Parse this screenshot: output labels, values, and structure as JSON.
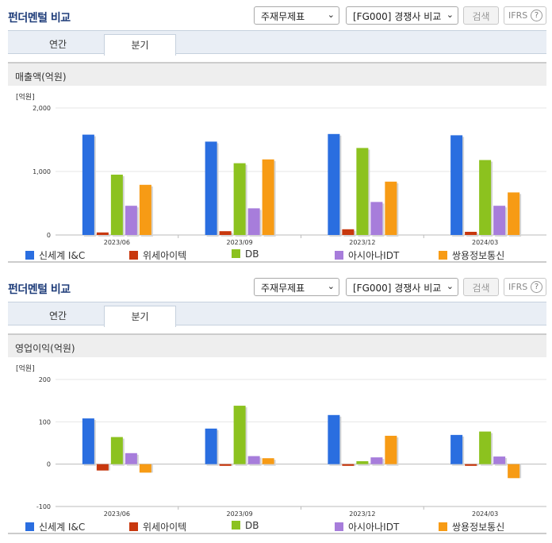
{
  "panels": [
    {
      "title": "펀더멘털 비교",
      "select1": "주재무제표",
      "select2": "[FG000] 경쟁사 비교",
      "search_label": "검색",
      "ifrs_label": "IFRS",
      "tab_annual": "연간",
      "tab_quarter": "분기",
      "chart_title": "매출액(억원)",
      "unit_label": "[억원]"
    },
    {
      "title": "펀더멘털 비교",
      "select1": "주재무제표",
      "select2": "[FG000] 경쟁사 비교",
      "search_label": "검색",
      "ifrs_label": "IFRS",
      "tab_annual": "연간",
      "tab_quarter": "분기",
      "chart_title": "영업이익(억원)",
      "unit_label": "[억원]"
    }
  ],
  "colors": {
    "신세계 I&C": "#2a6ee0",
    "위세아이텍": "#c8380e",
    "DB": "#8cc21f",
    "아시아나IDT": "#a77ddb",
    "쌍용정보통신": "#f79b15"
  },
  "chart_data": [
    {
      "type": "bar",
      "title": "매출액(억원)",
      "ylabel": "[억원]",
      "ylim": [
        0,
        2000
      ],
      "yticks": [
        0,
        1000,
        2000
      ],
      "ytick_labels": [
        "0",
        "1,000",
        "2,000"
      ],
      "categories": [
        "2023/06",
        "2023/09",
        "2023/12",
        "2024/03"
      ],
      "legend_position": "bottom",
      "series": [
        {
          "name": "신세계 I&C",
          "values": [
            1580,
            1470,
            1590,
            1570
          ]
        },
        {
          "name": "위세아이텍",
          "values": [
            40,
            60,
            90,
            50
          ]
        },
        {
          "name": "DB",
          "values": [
            950,
            1130,
            1370,
            1180
          ]
        },
        {
          "name": "아시아나IDT",
          "values": [
            460,
            420,
            520,
            460
          ]
        },
        {
          "name": "쌍용정보통신",
          "values": [
            790,
            1190,
            840,
            670
          ]
        }
      ]
    },
    {
      "type": "bar",
      "title": "영업이익(억원)",
      "ylabel": "[억원]",
      "ylim": [
        -100,
        200
      ],
      "yticks": [
        -100,
        0,
        100,
        200
      ],
      "ytick_labels": [
        "-100",
        "0",
        "100",
        "200"
      ],
      "categories": [
        "2023/06",
        "2023/09",
        "2023/12",
        "2024/03"
      ],
      "legend_position": "bottom",
      "series": [
        {
          "name": "신세계 I&C",
          "values": [
            108,
            84,
            116,
            69
          ]
        },
        {
          "name": "위세아이텍",
          "values": [
            -15,
            -4,
            -4,
            -4
          ]
        },
        {
          "name": "DB",
          "values": [
            64,
            138,
            7,
            77
          ]
        },
        {
          "name": "아시아나IDT",
          "values": [
            26,
            19,
            16,
            18
          ]
        },
        {
          "name": "쌍용정보통신",
          "values": [
            -20,
            14,
            67,
            -33
          ]
        }
      ]
    }
  ]
}
